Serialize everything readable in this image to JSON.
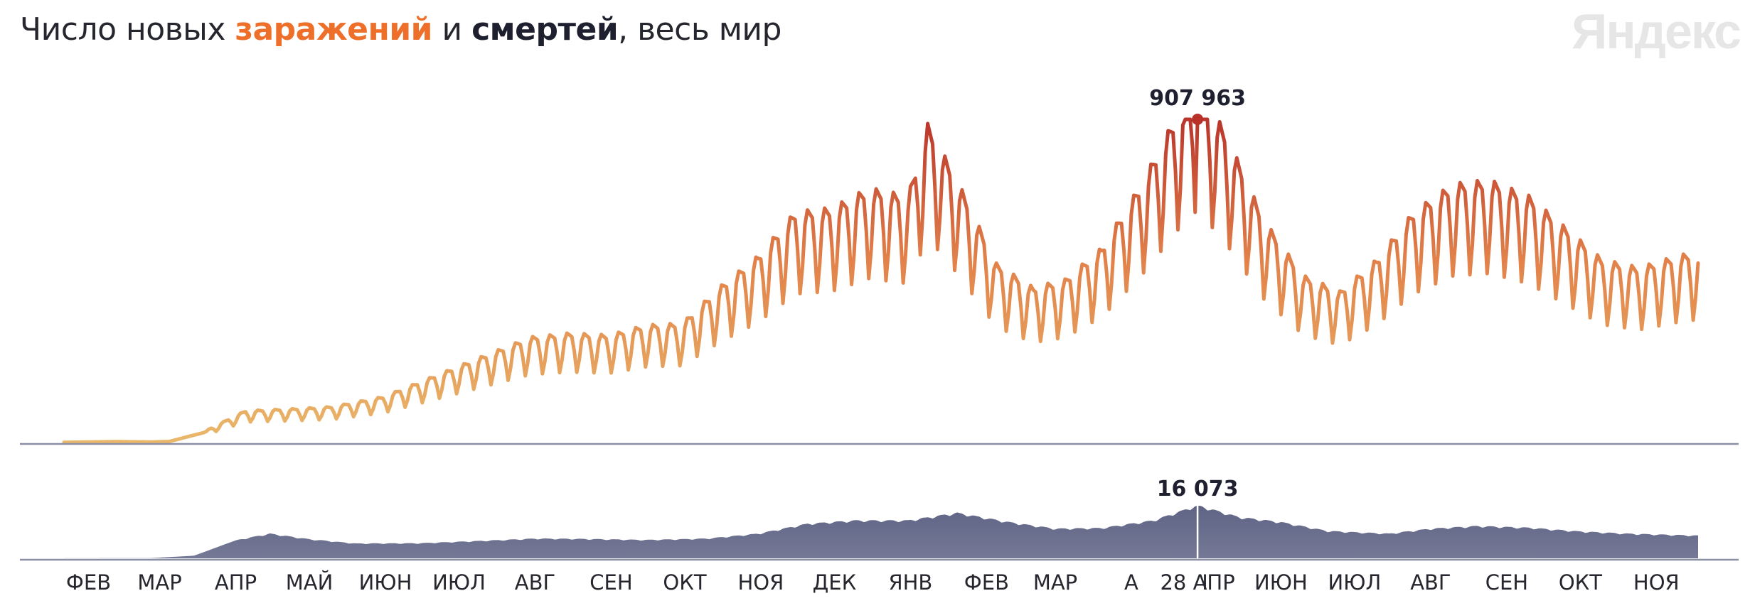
{
  "title": {
    "prefix": "Число новых ",
    "infections": "заражений",
    "middle": " и ",
    "deaths": "смертей",
    "suffix": ", весь мир"
  },
  "brand": "Яндекс",
  "colors": {
    "infections_low": "#e9b76a",
    "infections_mid": "#e2824a",
    "infections_high": "#b8322a",
    "deaths_fill": "#5c6183",
    "axis": "#8a8fa3",
    "text": "#26262e"
  },
  "chart_data": [
    {
      "type": "line",
      "title": "Число новых заражений",
      "x_range": [
        "2020-01-22",
        "2021-11-18"
      ],
      "peak": {
        "label": "907 963",
        "x": "2021-04-28",
        "value": 907963
      },
      "grid": false,
      "series": [
        {
          "points": [
            [
              "2020-01-22",
              500
            ],
            [
              "2020-02-12",
              2500
            ],
            [
              "2020-02-26",
              1500
            ],
            [
              "2020-03-05",
              3000
            ],
            [
              "2020-03-19",
              28000
            ],
            [
              "2020-04-05",
              80000
            ],
            [
              "2020-04-25",
              85000
            ],
            [
              "2020-05-10",
              90000
            ],
            [
              "2020-05-31",
              115000
            ],
            [
              "2020-06-20",
              165000
            ],
            [
              "2020-07-10",
              215000
            ],
            [
              "2020-07-30",
              265000
            ],
            [
              "2020-08-15",
              275000
            ],
            [
              "2020-08-31",
              270000
            ],
            [
              "2020-09-15",
              295000
            ],
            [
              "2020-09-30",
              300000
            ],
            [
              "2020-10-15",
              390000
            ],
            [
              "2020-10-31",
              470000
            ],
            [
              "2020-11-15",
              580000
            ],
            [
              "2020-11-30",
              590000
            ],
            [
              "2020-12-15",
              640000
            ],
            [
              "2020-12-31",
              620000
            ],
            [
              "2021-01-08",
              800000
            ],
            [
              "2021-01-20",
              660000
            ],
            [
              "2021-02-05",
              450000
            ],
            [
              "2021-02-20",
              390000
            ],
            [
              "2021-03-05",
              410000
            ],
            [
              "2021-03-20",
              490000
            ],
            [
              "2021-04-05",
              650000
            ],
            [
              "2021-04-20",
              830000
            ],
            [
              "2021-04-28",
              907963
            ],
            [
              "2021-05-10",
              770000
            ],
            [
              "2021-05-25",
              560000
            ],
            [
              "2021-06-10",
              420000
            ],
            [
              "2021-06-25",
              380000
            ],
            [
              "2021-07-10",
              460000
            ],
            [
              "2021-07-25",
              580000
            ],
            [
              "2021-08-10",
              650000
            ],
            [
              "2021-08-25",
              660000
            ],
            [
              "2021-09-10",
              620000
            ],
            [
              "2021-09-25",
              540000
            ],
            [
              "2021-10-10",
              460000
            ],
            [
              "2021-10-25",
              440000
            ],
            [
              "2021-11-10",
              470000
            ],
            [
              "2021-11-18",
              480000
            ]
          ]
        }
      ]
    },
    {
      "type": "area",
      "title": "Число новых смертей",
      "x_range": [
        "2020-01-22",
        "2021-11-18"
      ],
      "peak": {
        "label": "16 073",
        "x": "2021-04-28",
        "value": 16073
      },
      "grid": false,
      "series": [
        {
          "points": [
            [
              "2020-01-22",
              20
            ],
            [
              "2020-02-26",
              50
            ],
            [
              "2020-03-15",
              800
            ],
            [
              "2020-04-01",
              5500
            ],
            [
              "2020-04-15",
              7500
            ],
            [
              "2020-05-01",
              5800
            ],
            [
              "2020-05-20",
              4500
            ],
            [
              "2020-06-15",
              4600
            ],
            [
              "2020-07-10",
              5300
            ],
            [
              "2020-08-01",
              6000
            ],
            [
              "2020-08-20",
              5900
            ],
            [
              "2020-09-15",
              5600
            ],
            [
              "2020-10-10",
              6000
            ],
            [
              "2020-10-31",
              7500
            ],
            [
              "2020-11-20",
              10500
            ],
            [
              "2020-12-10",
              11500
            ],
            [
              "2020-12-31",
              11500
            ],
            [
              "2021-01-20",
              13800
            ],
            [
              "2021-02-10",
              11000
            ],
            [
              "2021-03-01",
              9000
            ],
            [
              "2021-03-20",
              9200
            ],
            [
              "2021-04-10",
              11500
            ],
            [
              "2021-04-28",
              16073
            ],
            [
              "2021-05-15",
              12500
            ],
            [
              "2021-06-01",
              11000
            ],
            [
              "2021-06-20",
              8300
            ],
            [
              "2021-07-05",
              7800
            ],
            [
              "2021-07-15",
              7500
            ],
            [
              "2021-08-01",
              9000
            ],
            [
              "2021-08-20",
              9800
            ],
            [
              "2021-09-10",
              9300
            ],
            [
              "2021-09-30",
              8200
            ],
            [
              "2021-10-20",
              7500
            ],
            [
              "2021-11-18",
              6900
            ]
          ]
        }
      ]
    }
  ],
  "x_axis": {
    "ticks": [
      {
        "label": "ФЕВ",
        "date": "2020-02-01"
      },
      {
        "label": "МАР",
        "date": "2020-03-01"
      },
      {
        "label": "АПР",
        "date": "2020-04-01"
      },
      {
        "label": "МАЙ",
        "date": "2020-05-01"
      },
      {
        "label": "ИЮН",
        "date": "2020-06-01"
      },
      {
        "label": "ИЮЛ",
        "date": "2020-07-01"
      },
      {
        "label": "АВГ",
        "date": "2020-08-01"
      },
      {
        "label": "СЕН",
        "date": "2020-09-01"
      },
      {
        "label": "ОКТ",
        "date": "2020-10-01"
      },
      {
        "label": "НОЯ",
        "date": "2020-11-01"
      },
      {
        "label": "ДЕК",
        "date": "2020-12-01"
      },
      {
        "label": "ЯНВ",
        "date": "2021-01-01"
      },
      {
        "label": "ФЕВ",
        "date": "2021-02-01"
      },
      {
        "label": "МАР",
        "date": "2021-03-01"
      },
      {
        "label": "А",
        "date": "2021-04-01"
      },
      {
        "label": "28 АПР",
        "date": "2021-04-28"
      },
      {
        "label": "І",
        "date": "2021-05-01"
      },
      {
        "label": "ИЮН",
        "date": "2021-06-01"
      },
      {
        "label": "ИЮЛ",
        "date": "2021-07-01"
      },
      {
        "label": "АВГ",
        "date": "2021-08-01"
      },
      {
        "label": "СЕН",
        "date": "2021-09-01"
      },
      {
        "label": "ОКТ",
        "date": "2021-10-01"
      },
      {
        "label": "НОЯ",
        "date": "2021-11-01"
      }
    ]
  }
}
